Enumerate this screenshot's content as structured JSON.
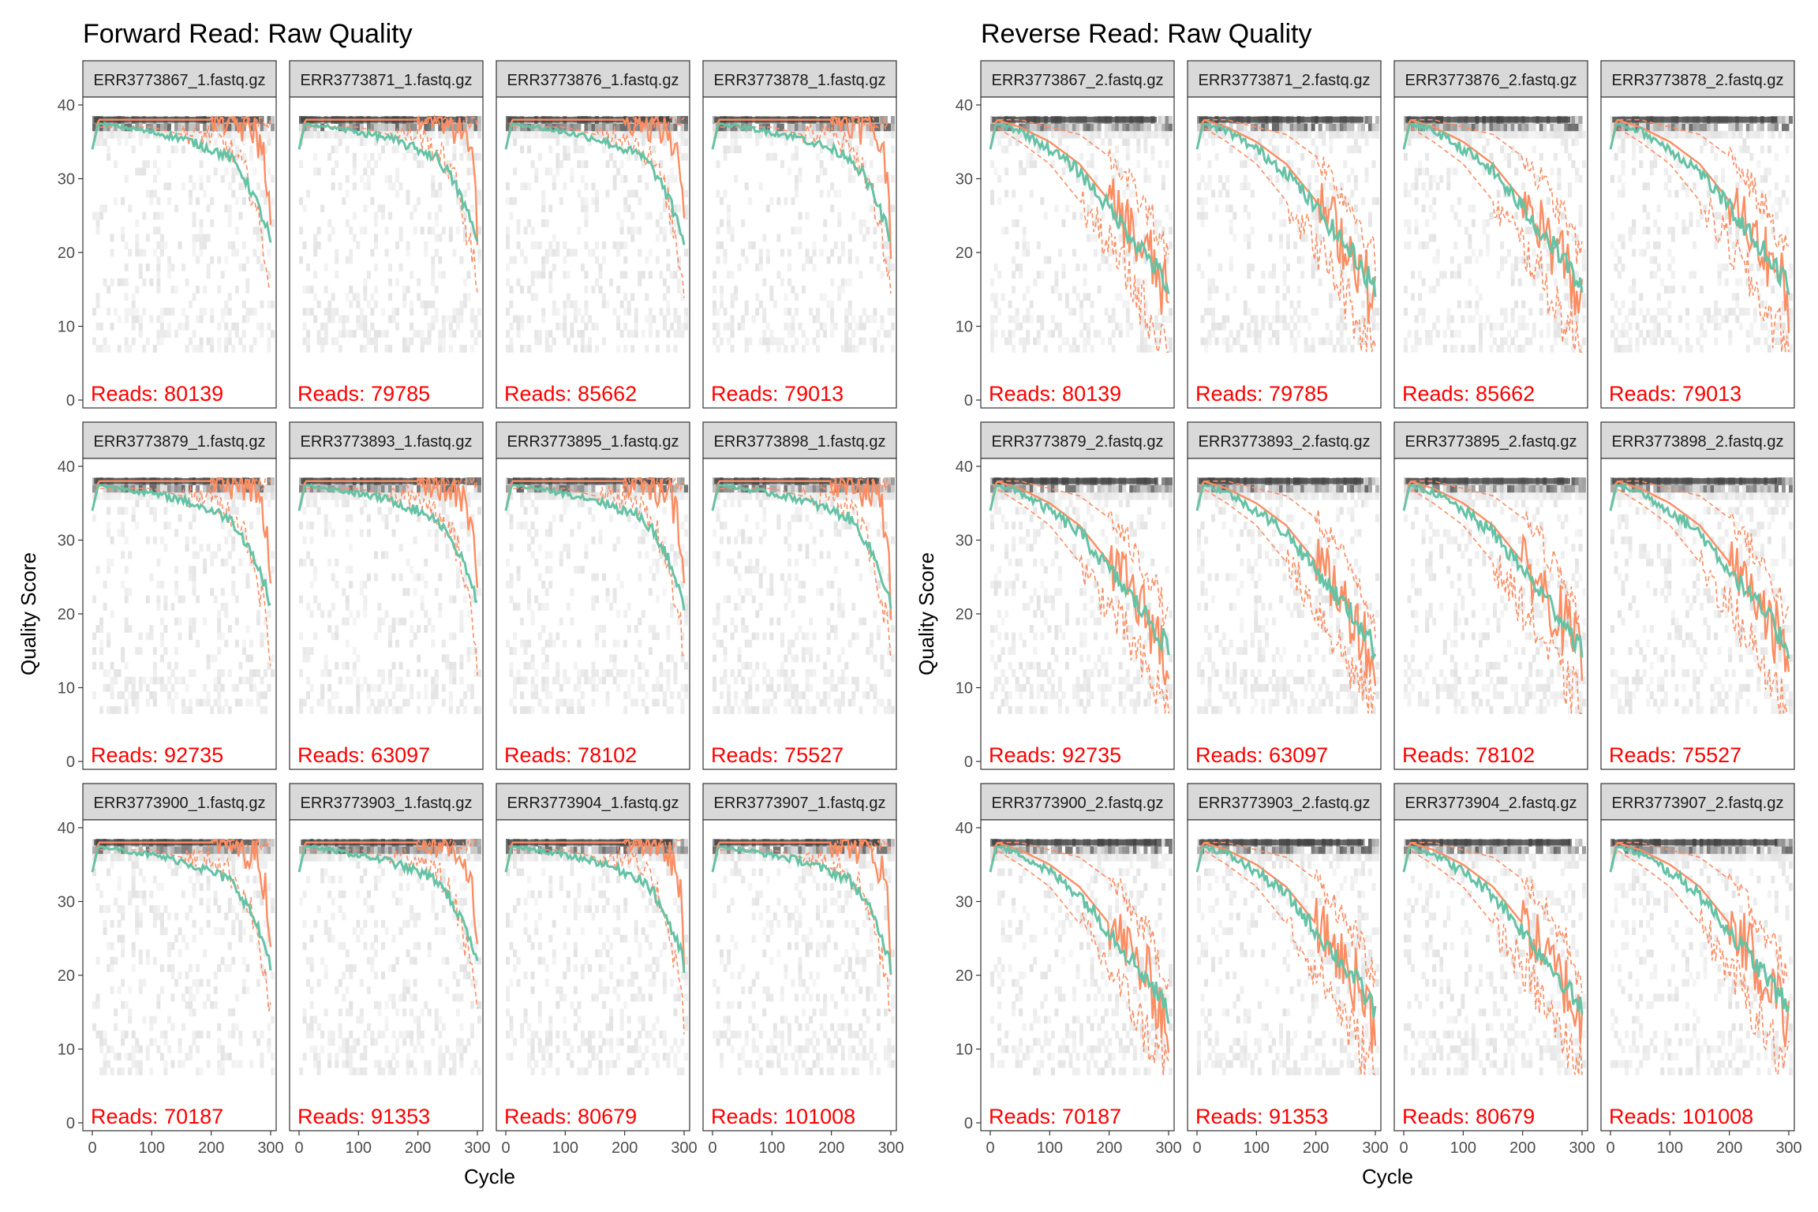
{
  "chart_data": [
    {
      "type": "line",
      "title": "Forward Read: Raw Quality",
      "xlabel": "Cycle",
      "ylabel": "Quality Score",
      "xlim": [
        0,
        300
      ],
      "ylim": [
        0,
        40
      ],
      "x_ticks": [
        "0",
        "100",
        "200",
        "300"
      ],
      "y_ticks": [
        "0",
        "10",
        "20",
        "30",
        "40"
      ],
      "grid": false,
      "legend": "none",
      "panel_layout": {
        "rows": 3,
        "cols": 4
      },
      "series_colors": {
        "mean": "#66c2a5",
        "median": "#fc8d62",
        "quartiles": "#fc8d62"
      },
      "reads_label_color": "#ff0000",
      "reads_prefix": "Reads: ",
      "profile": {
        "cycles": [
          0,
          10,
          50,
          100,
          150,
          200,
          230,
          250,
          270,
          285,
          295,
          300
        ],
        "mean": [
          34,
          37.5,
          37,
          36.3,
          35.5,
          34,
          33,
          31,
          28,
          25,
          23,
          21
        ],
        "median": [
          34,
          38,
          38,
          38,
          38,
          38,
          38,
          37,
          37,
          34,
          30,
          22
        ],
        "q25": [
          34,
          37,
          37,
          37,
          36,
          36,
          34,
          32,
          28,
          22,
          18,
          14
        ],
        "q75": [
          34,
          38,
          38,
          38,
          38,
          38,
          38,
          38,
          38,
          38,
          38,
          38
        ]
      },
      "panels": [
        {
          "label": "ERR3773867_1.fastq.gz",
          "reads": "80139"
        },
        {
          "label": "ERR3773871_1.fastq.gz",
          "reads": "79785"
        },
        {
          "label": "ERR3773876_1.fastq.gz",
          "reads": "85662"
        },
        {
          "label": "ERR3773878_1.fastq.gz",
          "reads": "79013"
        },
        {
          "label": "ERR3773879_1.fastq.gz",
          "reads": "92735"
        },
        {
          "label": "ERR3773893_1.fastq.gz",
          "reads": "63097"
        },
        {
          "label": "ERR3773895_1.fastq.gz",
          "reads": "78102"
        },
        {
          "label": "ERR3773898_1.fastq.gz",
          "reads": "75527"
        },
        {
          "label": "ERR3773900_1.fastq.gz",
          "reads": "70187"
        },
        {
          "label": "ERR3773903_1.fastq.gz",
          "reads": "91353"
        },
        {
          "label": "ERR3773904_1.fastq.gz",
          "reads": "80679"
        },
        {
          "label": "ERR3773907_1.fastq.gz",
          "reads": "101008"
        }
      ]
    },
    {
      "type": "line",
      "title": "Reverse Read: Raw Quality",
      "xlabel": "Cycle",
      "ylabel": "Quality Score",
      "xlim": [
        0,
        300
      ],
      "ylim": [
        0,
        40
      ],
      "x_ticks": [
        "0",
        "100",
        "200",
        "300"
      ],
      "y_ticks": [
        "0",
        "10",
        "20",
        "30",
        "40"
      ],
      "grid": false,
      "legend": "none",
      "panel_layout": {
        "rows": 3,
        "cols": 4
      },
      "series_colors": {
        "mean": "#66c2a5",
        "median": "#fc8d62",
        "quartiles": "#fc8d62"
      },
      "reads_label_color": "#ff0000",
      "reads_prefix": "Reads: ",
      "profile": {
        "cycles": [
          0,
          10,
          50,
          100,
          150,
          200,
          230,
          250,
          270,
          285,
          295,
          300
        ],
        "mean": [
          34,
          37.5,
          36.5,
          34,
          31,
          26,
          23,
          21,
          19,
          17,
          16,
          15
        ],
        "median": [
          34,
          38,
          37,
          35,
          32,
          27,
          24,
          21,
          19,
          16,
          14,
          13
        ],
        "q25": [
          34,
          37,
          35,
          32,
          27,
          21,
          17,
          14,
          11,
          9,
          8,
          7
        ],
        "q75": [
          34,
          38,
          38,
          37,
          36,
          33,
          30,
          27,
          25,
          22,
          20,
          19
        ]
      },
      "panels": [
        {
          "label": "ERR3773867_2.fastq.gz",
          "reads": "80139"
        },
        {
          "label": "ERR3773871_2.fastq.gz",
          "reads": "79785"
        },
        {
          "label": "ERR3773876_2.fastq.gz",
          "reads": "85662"
        },
        {
          "label": "ERR3773878_2.fastq.gz",
          "reads": "79013"
        },
        {
          "label": "ERR3773879_2.fastq.gz",
          "reads": "92735"
        },
        {
          "label": "ERR3773893_2.fastq.gz",
          "reads": "63097"
        },
        {
          "label": "ERR3773895_2.fastq.gz",
          "reads": "78102"
        },
        {
          "label": "ERR3773898_2.fastq.gz",
          "reads": "75527"
        },
        {
          "label": "ERR3773900_2.fastq.gz",
          "reads": "70187"
        },
        {
          "label": "ERR3773903_2.fastq.gz",
          "reads": "91353"
        },
        {
          "label": "ERR3773904_2.fastq.gz",
          "reads": "80679"
        },
        {
          "label": "ERR3773907_2.fastq.gz",
          "reads": "101008"
        }
      ]
    }
  ]
}
